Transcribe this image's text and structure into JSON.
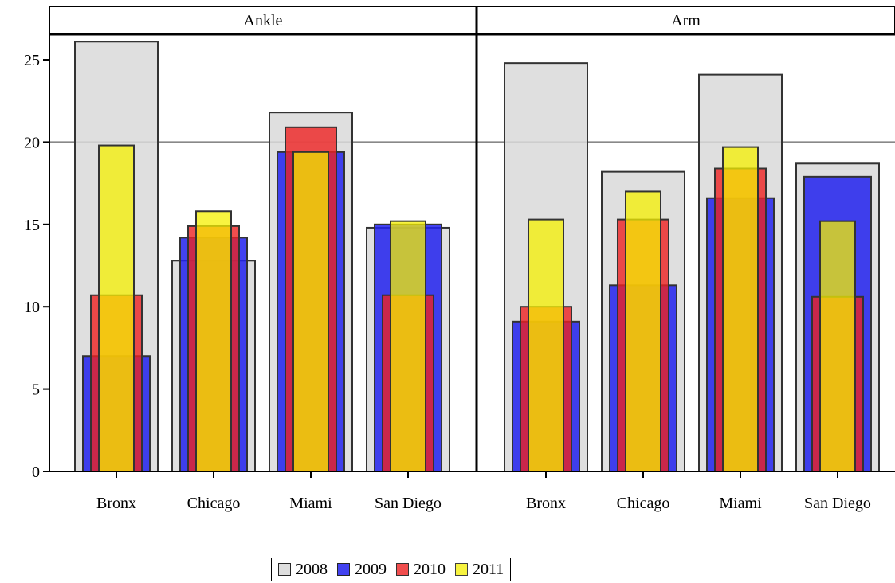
{
  "chart_data": {
    "type": "bar",
    "categories": [
      "Bronx",
      "Chicago",
      "Miami",
      "San Diego"
    ],
    "ylim": [
      0,
      26.5
    ],
    "yticks": [
      0,
      5,
      10,
      15,
      20,
      25
    ],
    "reference_line": 20,
    "panels": [
      {
        "title": "Ankle",
        "series": [
          {
            "name": "2008",
            "values": [
              26.1,
              12.8,
              21.8,
              14.8
            ]
          },
          {
            "name": "2009",
            "values": [
              7.0,
              14.2,
              19.4,
              15.0
            ]
          },
          {
            "name": "2010",
            "values": [
              10.7,
              14.9,
              20.9,
              10.7
            ]
          },
          {
            "name": "2011",
            "values": [
              19.8,
              15.8,
              19.4,
              15.2
            ]
          }
        ]
      },
      {
        "title": "Arm",
        "series": [
          {
            "name": "2008",
            "values": [
              24.8,
              18.2,
              24.1,
              18.7
            ]
          },
          {
            "name": "2009",
            "values": [
              9.1,
              11.3,
              16.6,
              17.9
            ]
          },
          {
            "name": "2010",
            "values": [
              10.0,
              15.3,
              18.4,
              10.6
            ]
          },
          {
            "name": "2011",
            "values": [
              15.3,
              17.0,
              19.7,
              15.2
            ]
          }
        ]
      }
    ],
    "legend": {
      "position": "bottom",
      "items": [
        "2008",
        "2009",
        "2010",
        "2011"
      ]
    },
    "colors": {
      "2008": "#d9d9d9",
      "2009": "#2222ee",
      "2010": "#ee2222",
      "2011": "#f5f000"
    },
    "bar_style": {
      "2008": {
        "opacity": 0.85
      },
      "2009": {
        "opacity": 0.85
      },
      "2010": {
        "opacity": 0.8
      },
      "2011": {
        "opacity": 0.75
      }
    }
  }
}
